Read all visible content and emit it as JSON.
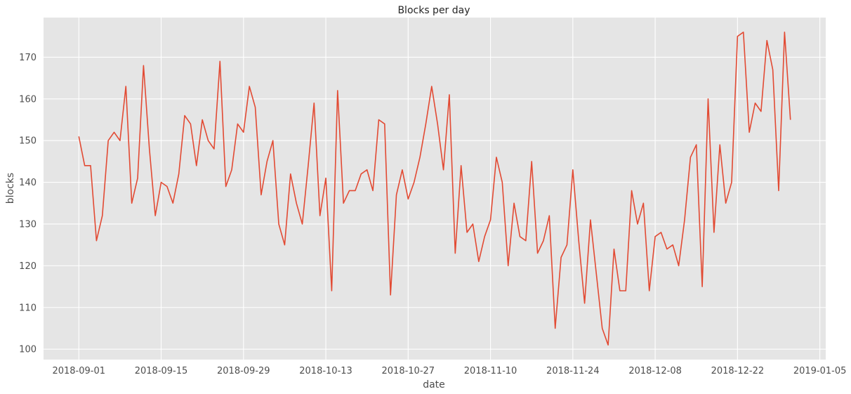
{
  "chart_data": {
    "type": "line",
    "title": "Blocks per day",
    "xlabel": "date",
    "ylabel": "blocks",
    "x_start": "2018-09-01",
    "x_step_days": 1,
    "xlim": [
      "2018-08-26",
      "2019-01-06"
    ],
    "ylim": [
      97.5,
      179.5
    ],
    "x_ticks": [
      "2018-09-01",
      "2018-09-15",
      "2018-09-29",
      "2018-10-13",
      "2018-10-27",
      "2018-11-10",
      "2018-11-24",
      "2018-12-08",
      "2018-12-22",
      "2019-01-05"
    ],
    "y_ticks": [
      100,
      110,
      120,
      130,
      140,
      150,
      160,
      170
    ],
    "grid": true,
    "background": "#e5e5e5",
    "line_color": "#e24a33",
    "series": [
      {
        "values": [
          151,
          144,
          144,
          126,
          132,
          150,
          152,
          150,
          163,
          135,
          141,
          168,
          148,
          132,
          140,
          139,
          135,
          142,
          156,
          154,
          144,
          155,
          150,
          148,
          169,
          139,
          143,
          154,
          152,
          163,
          158,
          137,
          145,
          150,
          130,
          125,
          142,
          135,
          130,
          144,
          159,
          132,
          141,
          114,
          162,
          135,
          138,
          138,
          142,
          143,
          138,
          155,
          154,
          113,
          137,
          143,
          136,
          140,
          146,
          154,
          163,
          154,
          143,
          161,
          123,
          144,
          128,
          130,
          121,
          127,
          131,
          146,
          140,
          120,
          135,
          127,
          126,
          145,
          123,
          126,
          132,
          105,
          122,
          125,
          143,
          126,
          111,
          131,
          118,
          105,
          101,
          124,
          114,
          114,
          138,
          130,
          135,
          114,
          127,
          128,
          124,
          125,
          120,
          131,
          146,
          149,
          115,
          160,
          128,
          149,
          135,
          140,
          175,
          176,
          152,
          159,
          157,
          174,
          167,
          138,
          176,
          155
        ]
      }
    ]
  }
}
